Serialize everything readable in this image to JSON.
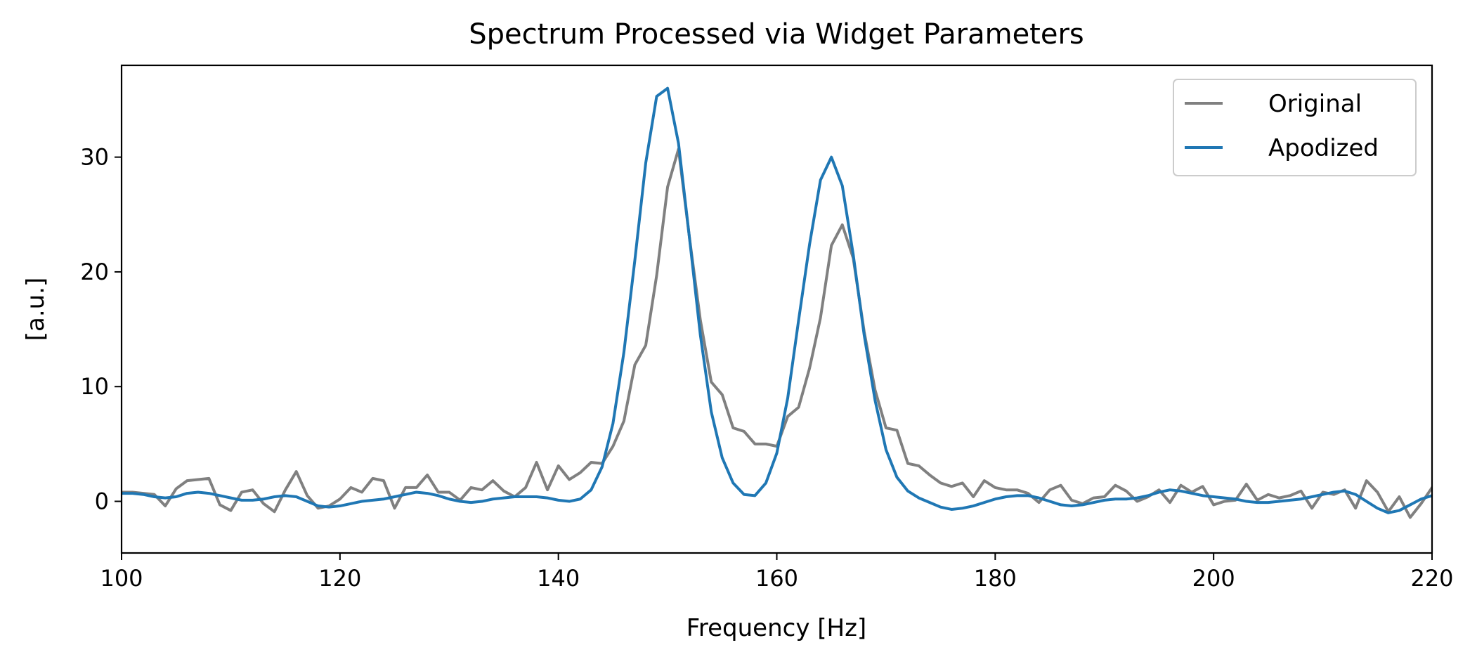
{
  "chart_data": {
    "type": "line",
    "title": "Spectrum Processed via Widget Parameters",
    "xlabel": "Frequency [Hz]",
    "ylabel": "[a.u.]",
    "xlim": [
      100,
      220
    ],
    "ylim": [
      -4.5,
      38
    ],
    "xticks": [
      100,
      120,
      140,
      160,
      180,
      200,
      220
    ],
    "yticks": [
      0,
      10,
      20,
      30
    ],
    "grid": false,
    "legend": "top-right",
    "series": [
      {
        "name": "Original",
        "color": "#808080",
        "x": [
          100,
          101,
          102,
          103,
          104,
          105,
          106,
          107,
          108,
          109,
          110,
          111,
          112,
          113,
          114,
          115,
          116,
          117,
          118,
          119,
          120,
          121,
          122,
          123,
          124,
          125,
          126,
          127,
          128,
          129,
          130,
          131,
          132,
          133,
          134,
          135,
          136,
          137,
          138,
          139,
          140,
          141,
          142,
          143,
          144,
          145,
          146,
          147,
          148,
          149,
          150,
          151,
          152,
          153,
          154,
          155,
          156,
          157,
          158,
          159,
          160,
          161,
          162,
          163,
          164,
          165,
          166,
          167,
          168,
          169,
          170,
          171,
          172,
          173,
          174,
          175,
          176,
          177,
          178,
          179,
          180,
          181,
          182,
          183,
          184,
          185,
          186,
          187,
          188,
          189,
          190,
          191,
          192,
          193,
          194,
          195,
          196,
          197,
          198,
          199,
          200,
          201,
          202,
          203,
          204,
          205,
          206,
          207,
          208,
          209,
          210,
          211,
          212,
          213,
          214,
          215,
          216,
          217,
          218,
          219,
          220
        ],
        "values": [
          0.8,
          0.8,
          0.7,
          0.6,
          -0.4,
          1.1,
          1.8,
          1.9,
          2.0,
          -0.3,
          -0.8,
          0.8,
          1.0,
          -0.2,
          -0.9,
          1.0,
          2.6,
          0.5,
          -0.6,
          -0.4,
          0.2,
          1.2,
          0.8,
          2.0,
          1.8,
          -0.6,
          1.2,
          1.2,
          2.3,
          0.8,
          0.8,
          0.1,
          1.2,
          1.0,
          1.8,
          0.9,
          0.4,
          1.2,
          3.4,
          1.0,
          3.1,
          1.9,
          2.5,
          3.4,
          3.3,
          4.8,
          7.0,
          11.9,
          13.6,
          19.7,
          27.4,
          30.7,
          23.0,
          15.8,
          10.4,
          9.3,
          6.4,
          6.1,
          5.0,
          5.0,
          4.8,
          7.4,
          8.2,
          11.6,
          16.0,
          22.3,
          24.1,
          21.2,
          14.8,
          9.7,
          6.4,
          6.2,
          3.3,
          3.1,
          2.3,
          1.6,
          1.3,
          1.6,
          0.4,
          1.8,
          1.2,
          1.0,
          1.0,
          0.7,
          -0.1,
          1.0,
          1.4,
          0.1,
          -0.2,
          0.3,
          0.4,
          1.4,
          0.9,
          0.0,
          0.4,
          1.0,
          -0.1,
          1.4,
          0.8,
          1.3,
          -0.3,
          0.0,
          0.1,
          1.5,
          0.1,
          0.6,
          0.3,
          0.5,
          0.9,
          -0.6,
          0.8,
          0.6,
          1.0,
          -0.6,
          1.8,
          0.8,
          -0.9,
          0.4,
          -1.4,
          -0.2,
          1.2
        ]
      },
      {
        "name": "Apodized",
        "color": "#1f77b4",
        "x": [
          100,
          101,
          102,
          103,
          104,
          105,
          106,
          107,
          108,
          109,
          110,
          111,
          112,
          113,
          114,
          115,
          116,
          117,
          118,
          119,
          120,
          121,
          122,
          123,
          124,
          125,
          126,
          127,
          128,
          129,
          130,
          131,
          132,
          133,
          134,
          135,
          136,
          137,
          138,
          139,
          140,
          141,
          142,
          143,
          144,
          145,
          146,
          147,
          148,
          149,
          150,
          151,
          152,
          153,
          154,
          155,
          156,
          157,
          158,
          159,
          160,
          161,
          162,
          163,
          164,
          165,
          166,
          167,
          168,
          169,
          170,
          171,
          172,
          173,
          174,
          175,
          176,
          177,
          178,
          179,
          180,
          181,
          182,
          183,
          184,
          185,
          186,
          187,
          188,
          189,
          190,
          191,
          192,
          193,
          194,
          195,
          196,
          197,
          198,
          199,
          200,
          201,
          202,
          203,
          204,
          205,
          206,
          207,
          208,
          209,
          210,
          211,
          212,
          213,
          214,
          215,
          216,
          217,
          218,
          219,
          220
        ],
        "values": [
          0.7,
          0.7,
          0.6,
          0.4,
          0.3,
          0.4,
          0.7,
          0.8,
          0.7,
          0.5,
          0.3,
          0.1,
          0.1,
          0.2,
          0.4,
          0.5,
          0.4,
          0.0,
          -0.4,
          -0.5,
          -0.4,
          -0.2,
          0.0,
          0.1,
          0.2,
          0.4,
          0.6,
          0.8,
          0.7,
          0.5,
          0.2,
          0.0,
          -0.1,
          0.0,
          0.2,
          0.3,
          0.4,
          0.4,
          0.4,
          0.3,
          0.1,
          0.0,
          0.2,
          1.0,
          3.0,
          6.8,
          13.0,
          21.0,
          29.5,
          35.3,
          36.0,
          31.2,
          23.0,
          14.5,
          7.8,
          3.8,
          1.6,
          0.6,
          0.5,
          1.6,
          4.2,
          9.0,
          15.8,
          22.4,
          28.0,
          30.0,
          27.5,
          21.5,
          14.5,
          8.8,
          4.5,
          2.1,
          0.9,
          0.3,
          -0.1,
          -0.5,
          -0.7,
          -0.6,
          -0.4,
          -0.1,
          0.2,
          0.4,
          0.5,
          0.5,
          0.3,
          0.0,
          -0.3,
          -0.4,
          -0.3,
          -0.1,
          0.1,
          0.2,
          0.2,
          0.3,
          0.5,
          0.8,
          1.0,
          0.9,
          0.7,
          0.5,
          0.4,
          0.3,
          0.2,
          0.0,
          -0.1,
          -0.1,
          0.0,
          0.1,
          0.2,
          0.4,
          0.6,
          0.8,
          0.9,
          0.6,
          0.0,
          -0.6,
          -1.0,
          -0.8,
          -0.3,
          0.2,
          0.5
        ]
      }
    ]
  }
}
